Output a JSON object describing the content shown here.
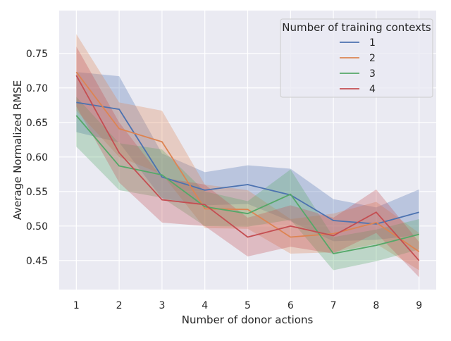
{
  "chart_data": {
    "type": "line",
    "title": "",
    "xlabel": "Number of donor actions",
    "ylabel": "Average Normalized RMSE",
    "x": [
      1,
      2,
      3,
      4,
      5,
      6,
      7,
      8,
      9
    ],
    "xlim": [
      0.6,
      9.4
    ],
    "ylim": [
      0.408,
      0.812
    ],
    "xticks": [
      1,
      2,
      3,
      4,
      5,
      6,
      7,
      8,
      9
    ],
    "yticks": [
      0.45,
      0.5,
      0.55,
      0.6,
      0.65,
      0.7,
      0.75
    ],
    "ytick_labels": [
      "0.45",
      "0.50",
      "0.55",
      "0.60",
      "0.65",
      "0.70",
      "0.75"
    ],
    "grid": true,
    "background": "#eaeaf2",
    "legend": {
      "title": "Number of training contexts",
      "placement": "top-right"
    },
    "series": [
      {
        "name": "1",
        "color": "#4c72b0",
        "values": [
          0.679,
          0.669,
          0.571,
          0.552,
          0.56,
          0.545,
          0.508,
          0.503,
          0.52
        ],
        "upper": [
          0.723,
          0.717,
          0.605,
          0.578,
          0.588,
          0.583,
          0.539,
          0.527,
          0.553
        ],
        "lower": [
          0.636,
          0.621,
          0.54,
          0.53,
          0.532,
          0.507,
          0.478,
          0.48,
          0.487
        ]
      },
      {
        "name": "2",
        "color": "#dd8452",
        "values": [
          0.723,
          0.641,
          0.622,
          0.525,
          0.524,
          0.484,
          0.489,
          0.505,
          0.463
        ],
        "upper": [
          0.778,
          0.679,
          0.667,
          0.56,
          0.552,
          0.51,
          0.518,
          0.535,
          0.49
        ],
        "lower": [
          0.667,
          0.6,
          0.575,
          0.497,
          0.496,
          0.46,
          0.462,
          0.474,
          0.436
        ]
      },
      {
        "name": "3",
        "color": "#55a868",
        "values": [
          0.66,
          0.587,
          0.574,
          0.528,
          0.518,
          0.546,
          0.46,
          0.472,
          0.488
        ],
        "upper": [
          0.687,
          0.62,
          0.611,
          0.55,
          0.536,
          0.582,
          0.484,
          0.495,
          0.51
        ],
        "lower": [
          0.615,
          0.552,
          0.541,
          0.5,
          0.499,
          0.509,
          0.436,
          0.449,
          0.466
        ]
      },
      {
        "name": "4",
        "color": "#c44e52",
        "values": [
          0.718,
          0.606,
          0.538,
          0.531,
          0.484,
          0.5,
          0.486,
          0.52,
          0.45
        ],
        "upper": [
          0.76,
          0.65,
          0.57,
          0.56,
          0.512,
          0.53,
          0.512,
          0.553,
          0.477
        ],
        "lower": [
          0.673,
          0.563,
          0.505,
          0.5,
          0.456,
          0.47,
          0.46,
          0.49,
          0.426
        ]
      }
    ]
  }
}
